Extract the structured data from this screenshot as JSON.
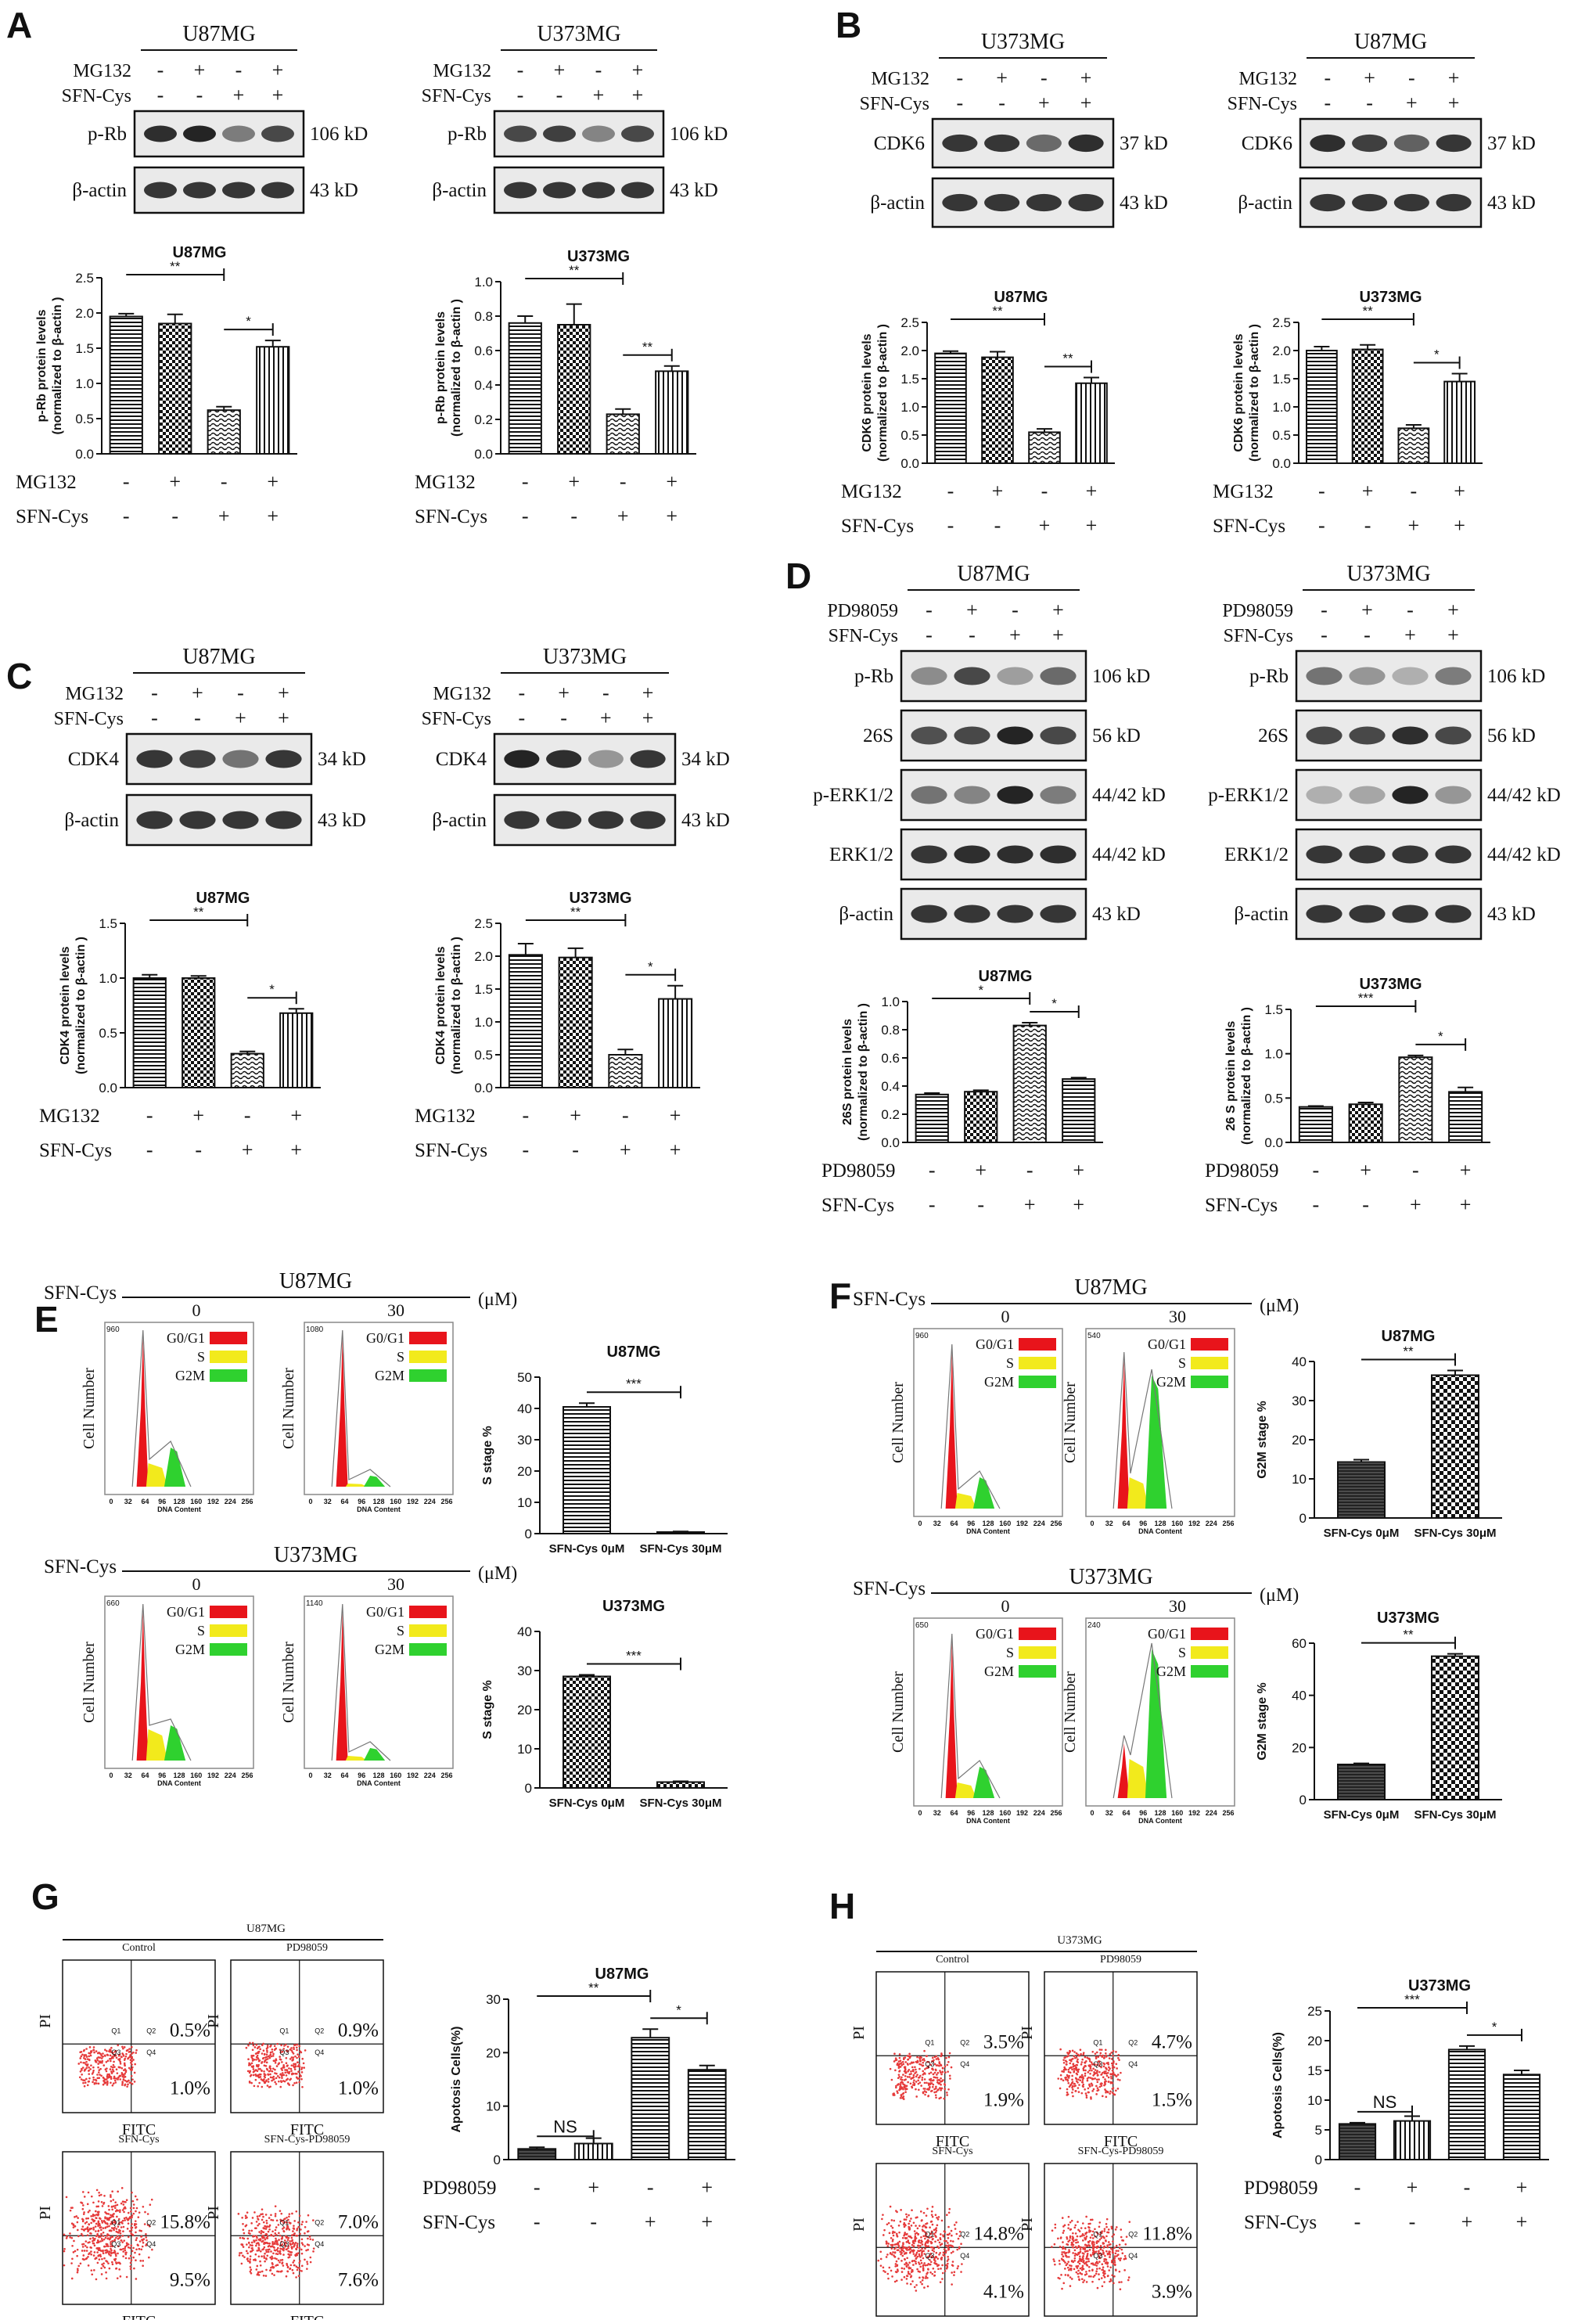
{
  "panels": {
    "A": {
      "letter": "A",
      "blots": [
        {
          "cell": "U87MG",
          "rows": [
            "MG132",
            "SFN-Cys"
          ],
          "bands": [
            {
              "label": "p-Rb",
              "size": "106 kD"
            },
            {
              "label": "β-actin",
              "size": "43 kD"
            }
          ]
        },
        {
          "cell": "U373MG",
          "rows": [
            "MG132",
            "SFN-Cys"
          ],
          "bands": [
            {
              "label": "p-Rb",
              "size": "106 kD"
            },
            {
              "label": "β-actin",
              "size": "43 kD"
            }
          ]
        }
      ],
      "charts": [
        {
          "title": "U87MG",
          "ylabel": "p-Rb protein levels\n(normalized to β-actin )",
          "ylim": [
            0,
            2.5
          ],
          "ticks": [
            "0.0",
            "0.5",
            "1.0",
            "1.5",
            "2.0",
            "2.5"
          ],
          "values": [
            1.95,
            1.85,
            0.62,
            1.52
          ],
          "errors": [
            0.04,
            0.13,
            0.05,
            0.09
          ],
          "sig": [
            {
              "from": 0,
              "to": 2,
              "label": "**"
            },
            {
              "from": 2,
              "to": 3,
              "label": "*"
            }
          ]
        },
        {
          "title": "U373MG",
          "ylabel": "p-Rb protein levels\n(normalized to β-actin )",
          "ylim": [
            0,
            1.0
          ],
          "ticks": [
            "0.0",
            "0.2",
            "0.4",
            "0.6",
            "0.8",
            "1.0"
          ],
          "values": [
            0.76,
            0.75,
            0.23,
            0.48
          ],
          "errors": [
            0.04,
            0.12,
            0.03,
            0.03
          ],
          "sig": [
            {
              "from": 0,
              "to": 2,
              "label": "**"
            },
            {
              "from": 2,
              "to": 3,
              "label": "**"
            }
          ]
        }
      ]
    },
    "B": {
      "letter": "B",
      "blots": [
        {
          "cell": "U373MG",
          "rows": [
            "MG132",
            "SFN-Cys"
          ],
          "bands": [
            {
              "label": "CDK6",
              "size": "37 kD"
            },
            {
              "label": "β-actin",
              "size": "43 kD"
            }
          ]
        },
        {
          "cell": "U87MG",
          "rows": [
            "MG132",
            "SFN-Cys"
          ],
          "bands": [
            {
              "label": "CDK6",
              "size": "37 kD"
            },
            {
              "label": "β-actin",
              "size": "43 kD"
            }
          ]
        }
      ],
      "charts": [
        {
          "title": "U87MG",
          "ylabel": "CDK6 protein levels\n(normalized to β-actin )",
          "ylim": [
            0,
            2.5
          ],
          "ticks": [
            "0.0",
            "0.5",
            "1.0",
            "1.5",
            "2.0",
            "2.5"
          ],
          "values": [
            1.95,
            1.88,
            0.55,
            1.42
          ],
          "errors": [
            0.04,
            0.1,
            0.06,
            0.1
          ],
          "sig": [
            {
              "from": 0,
              "to": 2,
              "label": "**"
            },
            {
              "from": 2,
              "to": 3,
              "label": "**"
            }
          ]
        },
        {
          "title": "U373MG",
          "ylabel": "CDK6 protein levels\n(normalized to β-actin )",
          "ylim": [
            0,
            2.5
          ],
          "ticks": [
            "0.0",
            "0.5",
            "1.0",
            "1.5",
            "2.0",
            "2.5"
          ],
          "values": [
            2.0,
            2.02,
            0.62,
            1.45
          ],
          "errors": [
            0.07,
            0.08,
            0.06,
            0.14
          ],
          "sig": [
            {
              "from": 0,
              "to": 2,
              "label": "**"
            },
            {
              "from": 2,
              "to": 3,
              "label": "*"
            }
          ]
        }
      ]
    },
    "C": {
      "letter": "C",
      "blots": [
        {
          "cell": "U87MG",
          "rows": [
            "MG132",
            "SFN-Cys"
          ],
          "bands": [
            {
              "label": "CDK4",
              "size": "34 kD"
            },
            {
              "label": "β-actin",
              "size": "43 kD"
            }
          ]
        },
        {
          "cell": "U373MG",
          "rows": [
            "MG132",
            "SFN-Cys"
          ],
          "bands": [
            {
              "label": "CDK4",
              "size": "34 kD"
            },
            {
              "label": "β-actin",
              "size": "43 kD"
            }
          ]
        }
      ],
      "charts": [
        {
          "title": "U87MG",
          "ylabel": "CDK4 protein levels\n(normalized to β-actin )",
          "ylim": [
            0,
            1.5
          ],
          "ticks": [
            "0.0",
            "0.5",
            "1.0",
            "1.5"
          ],
          "values": [
            1.0,
            1.0,
            0.31,
            0.68
          ],
          "errors": [
            0.03,
            0.02,
            0.02,
            0.04
          ],
          "sig": [
            {
              "from": 0,
              "to": 2,
              "label": "**"
            },
            {
              "from": 2,
              "to": 3,
              "label": "*"
            }
          ]
        },
        {
          "title": "U373MG",
          "ylabel": "CDK4 protein levels\n(normalized to β-actin )",
          "ylim": [
            0,
            2.5
          ],
          "ticks": [
            "0.0",
            "0.5",
            "1.0",
            "1.5",
            "2.0",
            "2.5"
          ],
          "values": [
            2.02,
            1.98,
            0.5,
            1.35
          ],
          "errors": [
            0.17,
            0.14,
            0.08,
            0.2
          ],
          "sig": [
            {
              "from": 0,
              "to": 2,
              "label": "**"
            },
            {
              "from": 2,
              "to": 3,
              "label": "*"
            }
          ]
        }
      ]
    },
    "D": {
      "letter": "D",
      "blots": [
        {
          "cell": "U87MG",
          "rows": [
            "PD98059",
            "SFN-Cys"
          ],
          "bands": [
            {
              "label": "p-Rb",
              "size": "106 kD"
            },
            {
              "label": "26S",
              "size": "56 kD"
            },
            {
              "label": "p-ERK1/2",
              "size": "44/42 kD"
            },
            {
              "label": "ERK1/2",
              "size": "44/42 kD"
            },
            {
              "label": "β-actin",
              "size": "43 kD"
            }
          ]
        },
        {
          "cell": "U373MG",
          "rows": [
            "PD98059",
            "SFN-Cys"
          ],
          "bands": [
            {
              "label": "p-Rb",
              "size": "106 kD"
            },
            {
              "label": "26S",
              "size": "56 kD"
            },
            {
              "label": "p-ERK1/2",
              "size": "44/42 kD"
            },
            {
              "label": "ERK1/2",
              "size": "44/42 kD"
            },
            {
              "label": "β-actin",
              "size": "43 kD"
            }
          ]
        }
      ],
      "charts": [
        {
          "title": "U87MG",
          "ylabel": "26S protein levels\n(normalized to β-actin )",
          "ylim": [
            0,
            1.0
          ],
          "ticks": [
            "0.0",
            "0.2",
            "0.4",
            "0.6",
            "0.8",
            "1.0"
          ],
          "values": [
            0.34,
            0.36,
            0.83,
            0.45
          ],
          "errors": [
            0.01,
            0.01,
            0.02,
            0.01
          ],
          "sig": [
            {
              "from": 0,
              "to": 2,
              "label": "*"
            },
            {
              "from": 2,
              "to": 3,
              "label": "*"
            }
          ]
        },
        {
          "title": "U373MG",
          "ylabel": "26 S protein levels\n(normalized to β-actin )",
          "ylim": [
            0,
            1.5
          ],
          "ticks": [
            "0.0",
            "0.5",
            "1.0",
            "1.5"
          ],
          "values": [
            0.4,
            0.43,
            0.96,
            0.57
          ],
          "errors": [
            0.01,
            0.02,
            0.02,
            0.05
          ],
          "sig": [
            {
              "from": 0,
              "to": 2,
              "label": "***"
            },
            {
              "from": 2,
              "to": 3,
              "label": "*"
            }
          ]
        }
      ]
    },
    "E": {
      "letter": "E",
      "treat": "SFN-Cys",
      "unit": "(μM)",
      "doses": [
        "0",
        "30"
      ],
      "legend": [
        "G0/G1",
        "S",
        "G2M"
      ],
      "xaxis": "DNA Content",
      "yaxis": "Cell Number",
      "xticks": [
        "0",
        "32",
        "64",
        "96",
        "128",
        "160",
        "192",
        "224",
        "256"
      ],
      "rows": [
        {
          "cell": "U87MG",
          "ymax": [
            "960",
            "1080"
          ]
        },
        {
          "cell": "U373MG",
          "ymax": [
            "660",
            "1140"
          ]
        }
      ],
      "charts": [
        {
          "title": "U87MG",
          "ylabel": "S stage %",
          "ylim": [
            0,
            50
          ],
          "ticks": [
            "0",
            "10",
            "20",
            "30",
            "40",
            "50"
          ],
          "categories": [
            "SFN-Cys 0μM",
            "SFN-Cys 30μM"
          ],
          "values": [
            40.5,
            0.5
          ],
          "errors": [
            1.2,
            0.2
          ],
          "sig": [
            {
              "from": 0,
              "to": 1,
              "label": "***"
            }
          ]
        },
        {
          "title": "U373MG",
          "ylabel": "S stage %",
          "ylim": [
            0,
            40
          ],
          "ticks": [
            "0",
            "10",
            "20",
            "30",
            "40"
          ],
          "categories": [
            "SFN-Cys 0μM",
            "SFN-Cys 30μM"
          ],
          "values": [
            28.5,
            1.5
          ],
          "errors": [
            0.4,
            0.2
          ],
          "sig": [
            {
              "from": 0,
              "to": 1,
              "label": "***"
            }
          ]
        }
      ]
    },
    "F": {
      "letter": "F",
      "treat": "SFN-Cys",
      "unit": "(μM)",
      "doses": [
        "0",
        "30"
      ],
      "legend": [
        "G0/G1",
        "S",
        "G2M"
      ],
      "xaxis": "DNA Content",
      "yaxis": "Cell Number",
      "xticks": [
        "0",
        "32",
        "64",
        "96",
        "128",
        "160",
        "192",
        "224",
        "256"
      ],
      "rows": [
        {
          "cell": "U87MG",
          "ymax": [
            "960",
            "540"
          ]
        },
        {
          "cell": "U373MG",
          "ymax": [
            "650",
            "240"
          ]
        }
      ],
      "charts": [
        {
          "title": "U87MG",
          "ylabel": "G2M stage %",
          "ylim": [
            0,
            40
          ],
          "ticks": [
            "0",
            "10",
            "20",
            "30",
            "40"
          ],
          "categories": [
            "SFN-Cys 0μM",
            "SFN-Cys 30μM"
          ],
          "values": [
            14.3,
            36.5
          ],
          "errors": [
            0.6,
            1.2
          ],
          "sig": [
            {
              "from": 0,
              "to": 1,
              "label": "**"
            }
          ]
        },
        {
          "title": "U373MG",
          "ylabel": "G2M stage %",
          "ylim": [
            0,
            60
          ],
          "ticks": [
            "0",
            "20",
            "40",
            "60"
          ],
          "categories": [
            "SFN-Cys 0μM",
            "SFN-Cys 30μM"
          ],
          "values": [
            13.5,
            55
          ],
          "errors": [
            0.4,
            0.9
          ],
          "sig": [
            {
              "from": 0,
              "to": 1,
              "label": "**"
            }
          ]
        }
      ]
    },
    "G": {
      "letter": "G",
      "cell": "U87MG",
      "plots": [
        {
          "name": "Control",
          "ur": "0.5%",
          "lr": "1.0%"
        },
        {
          "name": "PD98059",
          "ur": "0.9%",
          "lr": "1.0%"
        },
        {
          "name": "SFN-Cys",
          "ur": "15.8%",
          "lr": "9.5%"
        },
        {
          "name": "SFN-Cys-PD98059",
          "ur": "7.0%",
          "lr": "7.6%"
        }
      ],
      "xaxis": "FITC",
      "yaxis": "PI",
      "quads": [
        "Q1",
        "Q2",
        "Q3",
        "Q4"
      ],
      "chart": {
        "title": "U87MG",
        "ylabel": "Apotosis Cells(%)",
        "ylim": [
          0,
          30
        ],
        "ticks": [
          "0",
          "10",
          "20",
          "30"
        ],
        "values": [
          2.0,
          3.0,
          22.8,
          16.8
        ],
        "errors": [
          0.3,
          1.0,
          1.6,
          0.8
        ],
        "sig": [
          {
            "from": 0,
            "to": 1,
            "label": "NS"
          },
          {
            "from": 0,
            "to": 2,
            "label": "**"
          },
          {
            "from": 2,
            "to": 3,
            "label": "*"
          }
        ]
      }
    },
    "H": {
      "letter": "H",
      "cell": "U373MG",
      "plots": [
        {
          "name": "Control",
          "ur": "3.5%",
          "lr": "1.9%"
        },
        {
          "name": "PD98059",
          "ur": "4.7%",
          "lr": "1.5%"
        },
        {
          "name": "SFN-Cys",
          "ur": "14.8%",
          "lr": "4.1%"
        },
        {
          "name": "SFN-Cys-PD98059",
          "ur": "11.8%",
          "lr": "3.9%"
        }
      ],
      "xaxis": "FITC",
      "yaxis": "PI",
      "quads": [
        "Q1",
        "Q2",
        "Q3",
        "Q4"
      ],
      "chart": {
        "title": "U373MG",
        "ylabel": "Apotosis Cells(%)",
        "ylim": [
          0,
          25
        ],
        "ticks": [
          "0",
          "5",
          "10",
          "15",
          "20",
          "25"
        ],
        "values": [
          6.0,
          6.5,
          18.5,
          14.3
        ],
        "errors": [
          0.2,
          0.8,
          0.6,
          0.7
        ],
        "sig": [
          {
            "from": 0,
            "to": 1,
            "label": "NS"
          },
          {
            "from": 0,
            "to": 2,
            "label": "***"
          },
          {
            "from": 2,
            "to": 3,
            "label": "*"
          }
        ]
      }
    }
  },
  "signs": {
    "A": [
      [
        "-",
        "+",
        "-",
        "+"
      ],
      [
        "-",
        "-",
        "+",
        "+"
      ]
    ]
  },
  "treat_row_labels": {
    "A": [
      "MG132",
      "SFN-Cys"
    ],
    "B": [
      "MG132",
      "SFN-Cys"
    ],
    "C": [
      "MG132",
      "SFN-Cys"
    ],
    "D": [
      "PD98059",
      "SFN-Cys"
    ],
    "G": [
      "PD98059",
      "SFN-Cys"
    ],
    "H": [
      "PD98059",
      "SFN-Cys"
    ]
  },
  "colors": {
    "g0g1": "#e8141b",
    "s": "#f2ea1c",
    "g2m": "#2fd12f",
    "dots": "#e63a3a"
  }
}
